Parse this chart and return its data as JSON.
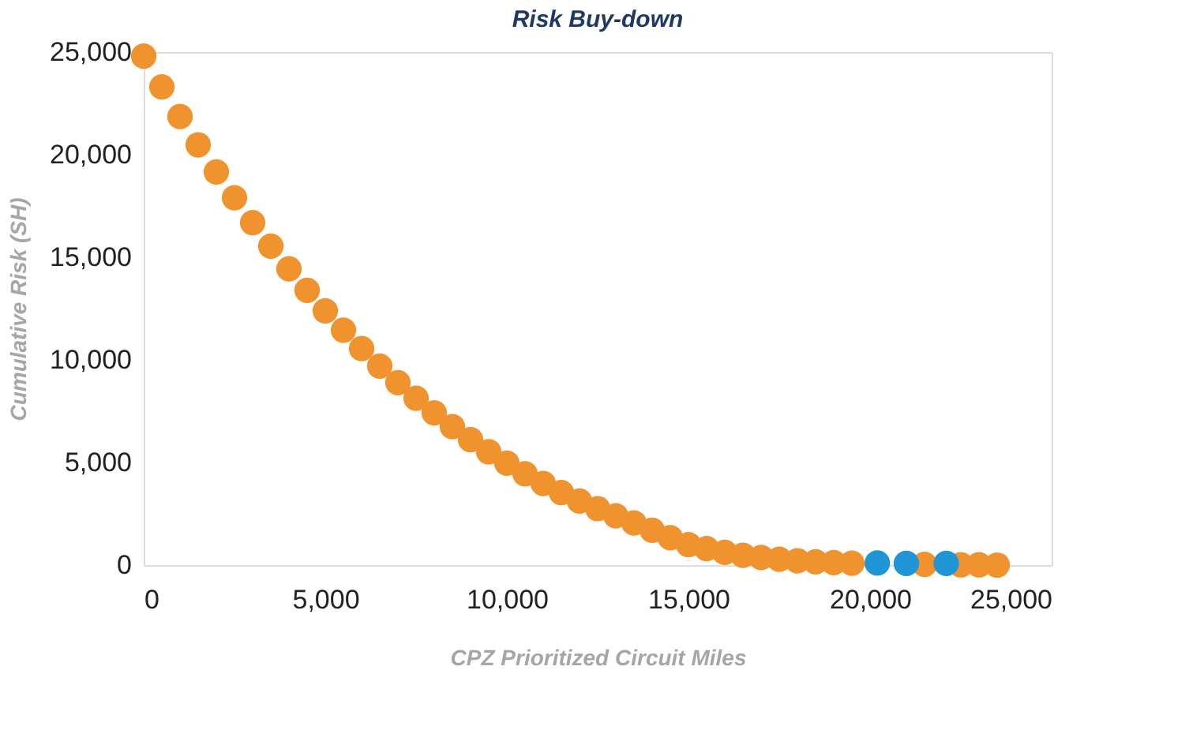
{
  "chart_data": {
    "type": "scatter",
    "title": "Risk Buy-down",
    "xlabel": "CPZ Prioritized Circuit Miles",
    "ylabel": "Cumulative Risk (SH)",
    "xlim": [
      0,
      25000
    ],
    "xticks": [
      0,
      {
        "value": 5000,
        "label": "5,000"
      },
      {
        "value": 10000,
        "label": "10,000"
      },
      {
        "value": 15000,
        "label": "15,000"
      },
      {
        "value": 20000,
        "label": "20,000"
      },
      {
        "value": 25000,
        "label": "25,000"
      }
    ],
    "ylim": [
      0,
      25000
    ],
    "yticks": [
      0,
      {
        "value": 5000,
        "label": "5,000"
      },
      {
        "value": 10000,
        "label": "10,000"
      },
      {
        "value": 15000,
        "label": "15,000"
      },
      {
        "value": 20000,
        "label": "20,000"
      },
      {
        "value": 25000,
        "label": "25,000"
      }
    ],
    "grid": false,
    "legend": false,
    "marker": "circle",
    "series": [
      {
        "color": "#f0922e",
        "x": [
          0,
          500,
          1000,
          1500,
          2000,
          2500,
          3000,
          3500,
          4000,
          4500,
          5000,
          5500,
          6000,
          6500,
          7000,
          7500,
          8000,
          8500,
          9000,
          9500,
          10000,
          10500,
          11000,
          11500,
          12000,
          12500,
          13000,
          13500,
          14000,
          14500,
          15000,
          15500,
          16000,
          16500,
          17000,
          17500,
          18000,
          18500,
          19000,
          19500,
          20000,
          20500,
          21500,
          22000,
          22500,
          23000,
          23500
        ],
        "values": [
          24800,
          23300,
          21860,
          20480,
          19160,
          17900,
          16690,
          15540,
          14440,
          13390,
          12390,
          11450,
          10550,
          9700,
          8890,
          8130,
          7420,
          6750,
          6110,
          5520,
          4970,
          4450,
          3980,
          3530,
          3120,
          2750,
          2400,
          2050,
          1700,
          1330,
          1000,
          800,
          620,
          480,
          370,
          280,
          210,
          160,
          120,
          90,
          null,
          null,
          30,
          null,
          10,
          10,
          0
        ]
      },
      {
        "color": "#1f95d6",
        "x": [
          20200,
          21000,
          22100
        ],
        "values": [
          100,
          80,
          80
        ]
      }
    ]
  }
}
